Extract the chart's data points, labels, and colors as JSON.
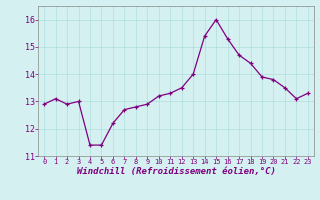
{
  "x": [
    0,
    1,
    2,
    3,
    4,
    5,
    6,
    7,
    8,
    9,
    10,
    11,
    12,
    13,
    14,
    15,
    16,
    17,
    18,
    19,
    20,
    21,
    22,
    23
  ],
  "y": [
    12.9,
    13.1,
    12.9,
    13.0,
    11.4,
    11.4,
    12.2,
    12.7,
    12.8,
    12.9,
    13.2,
    13.3,
    13.5,
    14.0,
    15.4,
    16.0,
    15.3,
    14.7,
    14.4,
    13.9,
    13.8,
    13.5,
    13.1,
    13.3
  ],
  "line_color": "#800080",
  "marker": "+",
  "marker_size": 3.5,
  "linewidth": 0.9,
  "xlabel": "Windchill (Refroidissement éolien,°C)",
  "xlabel_fontsize": 6.5,
  "ylim": [
    11,
    16.5
  ],
  "yticks": [
    11,
    12,
    13,
    14,
    15,
    16
  ],
  "xticks": [
    0,
    1,
    2,
    3,
    4,
    5,
    6,
    7,
    8,
    9,
    10,
    11,
    12,
    13,
    14,
    15,
    16,
    17,
    18,
    19,
    20,
    21,
    22,
    23
  ],
  "xtick_fontsize": 5.0,
  "ytick_fontsize": 6.0,
  "grid_color": "#b0dede",
  "background_color": "#d4f0f0",
  "fig_width": 3.2,
  "fig_height": 2.0,
  "dpi": 100
}
